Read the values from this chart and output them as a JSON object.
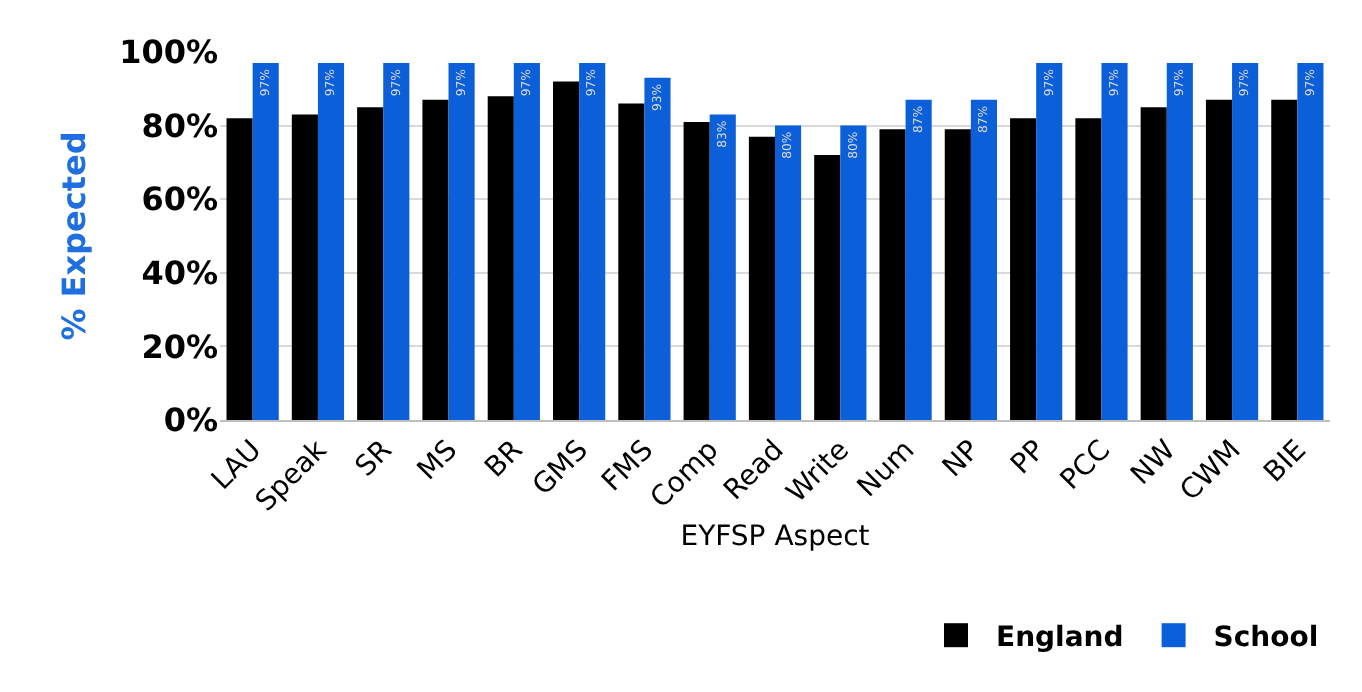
{
  "chart_data": {
    "type": "bar",
    "xlabel": "EYFSP Aspect",
    "ylabel": "% Expected",
    "categories": [
      "LAU",
      "Speak",
      "SR",
      "MS",
      "BR",
      "GMS",
      "FMS",
      "Comp",
      "Read",
      "Write",
      "Num",
      "NP",
      "PP",
      "PCC",
      "NW",
      "CWM",
      "BIE"
    ],
    "series": [
      {
        "name": "England",
        "color": "#000000",
        "values": [
          82,
          83,
          85,
          87,
          88,
          92,
          86,
          81,
          77,
          72,
          79,
          79,
          82,
          82,
          85,
          87,
          87
        ]
      },
      {
        "name": "School",
        "color": "#0b5fd8",
        "values": [
          97,
          97,
          97,
          97,
          97,
          97,
          93,
          83,
          80,
          80,
          87,
          87,
          97,
          97,
          97,
          97,
          97
        ],
        "value_labels": [
          "97%",
          "97%",
          "97%",
          "97%",
          "97%",
          "97%",
          "93%",
          "83%",
          "80%",
          "80%",
          "87%",
          "87%",
          "97%",
          "97%",
          "97%",
          "97%",
          "97%"
        ]
      }
    ],
    "ylim": [
      0,
      100
    ],
    "yticks": [
      {
        "value": 0,
        "label": "0%"
      },
      {
        "value": 20,
        "label": "20%"
      },
      {
        "value": 40,
        "label": "40%"
      },
      {
        "value": 60,
        "label": "60%"
      },
      {
        "value": 80,
        "label": "80%"
      },
      {
        "value": 100,
        "label": "100%"
      }
    ],
    "grid": "y",
    "legend": "bottom right"
  }
}
